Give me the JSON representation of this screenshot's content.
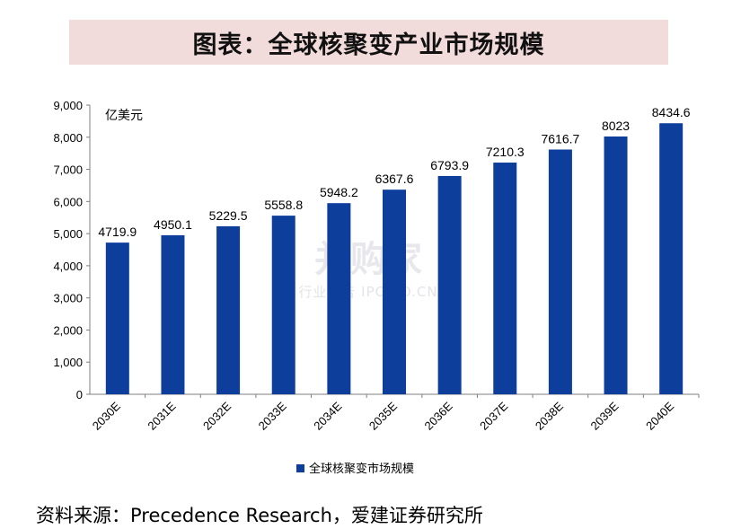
{
  "title": "图表：全球核聚变产业市场规模",
  "source": "资料来源：Precedence Research，爱建证券研究所",
  "watermark": {
    "main": "并购家",
    "sub": "行业报告 IPOIPO.CN"
  },
  "colors": {
    "bar": "#0d3e9c",
    "banner": "#f2dcdb"
  },
  "chart_data": {
    "type": "bar",
    "categories": [
      "2030E",
      "2031E",
      "2032E",
      "2033E",
      "2034E",
      "2035E",
      "2036E",
      "2037E",
      "2038E",
      "2039E",
      "2040E"
    ],
    "series": [
      {
        "name": "全球核聚变市场规模",
        "values": [
          4719.9,
          4950.1,
          5229.5,
          5558.8,
          5948.2,
          6367.6,
          6793.9,
          7210.3,
          7616.7,
          8023,
          8434.6
        ]
      }
    ],
    "data_labels": [
      "4719.9",
      "4950.1",
      "5229.5",
      "5558.8",
      "5948.2",
      "6367.6",
      "6793.9",
      "7210.3",
      "7616.7",
      "8023",
      "8434.6"
    ],
    "ylabel": "亿美元",
    "ylim": [
      0,
      9000
    ],
    "yticks": [
      "0",
      "1,000",
      "2,000",
      "3,000",
      "4,000",
      "5,000",
      "6,000",
      "7,000",
      "8,000",
      "9,000"
    ],
    "grid": false,
    "legend_position": "bottom"
  }
}
